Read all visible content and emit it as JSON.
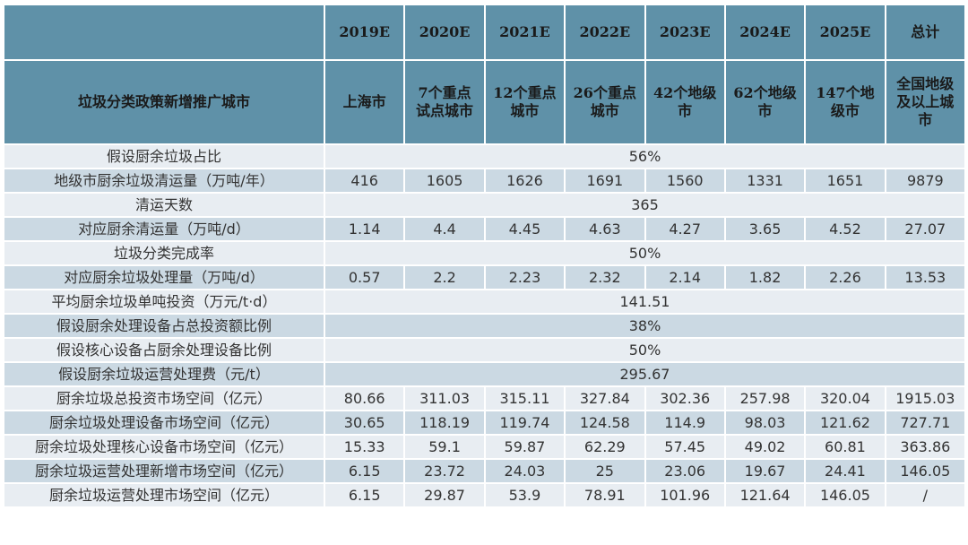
{
  "colors": {
    "header": "#5f91a8",
    "row_light": "#e8edf2",
    "row_dark": "#cbd9e3"
  },
  "header": {
    "years": [
      "2019E",
      "2020E",
      "2021E",
      "2022E",
      "2023E",
      "2024E",
      "2025E",
      "总计"
    ],
    "city_label": "垃圾分类政策新增推广城市",
    "cities": [
      "上海市",
      "7个重点试点城市",
      "12个重点城市",
      "26个重点城市",
      "42个地级市",
      "62个地级市",
      "147个地级市",
      "全国地级及以上城市"
    ]
  },
  "rows": [
    {
      "label": "假设厨余垃圾占比",
      "merged": "56%"
    },
    {
      "label": "地级市厨余垃圾清运量（万吨/年）",
      "values": [
        "416",
        "1605",
        "1626",
        "1691",
        "1560",
        "1331",
        "1651",
        "9879"
      ]
    },
    {
      "label": "清运天数",
      "merged": "365"
    },
    {
      "label": "对应厨余清运量（万吨/d）",
      "values": [
        "1.14",
        "4.4",
        "4.45",
        "4.63",
        "4.27",
        "3.65",
        "4.52",
        "27.07"
      ]
    },
    {
      "label": "垃圾分类完成率",
      "merged": "50%"
    },
    {
      "label": "对应厨余垃圾处理量（万吨/d）",
      "values": [
        "0.57",
        "2.2",
        "2.23",
        "2.32",
        "2.14",
        "1.82",
        "2.26",
        "13.53"
      ]
    },
    {
      "label": "平均厨余垃圾单吨投资（万元/t·d）",
      "merged": "141.51"
    },
    {
      "label": "假设厨余处理设备占总投资额比例",
      "merged": "38%"
    },
    {
      "label": "假设核心设备占厨余处理设备比例",
      "merged": "50%"
    },
    {
      "label": "假设厨余垃圾运营处理费（元/t）",
      "merged": "295.67"
    },
    {
      "label": "厨余垃圾总投资市场空间（亿元）",
      "values": [
        "80.66",
        "311.03",
        "315.11",
        "327.84",
        "302.36",
        "257.98",
        "320.04",
        "1915.03"
      ]
    },
    {
      "label": "厨余垃圾处理设备市场空间（亿元）",
      "values": [
        "30.65",
        "118.19",
        "119.74",
        "124.58",
        "114.9",
        "98.03",
        "121.62",
        "727.71"
      ]
    },
    {
      "label": "厨余垃圾处理核心设备市场空间（亿元）",
      "values": [
        "15.33",
        "59.1",
        "59.87",
        "62.29",
        "57.45",
        "49.02",
        "60.81",
        "363.86"
      ]
    },
    {
      "label": "厨余垃圾运营处理新增市场空间（亿元）",
      "values": [
        "6.15",
        "23.72",
        "24.03",
        "25",
        "23.06",
        "19.67",
        "24.41",
        "146.05"
      ]
    },
    {
      "label": "厨余垃圾运营处理市场空间（亿元）",
      "values": [
        "6.15",
        "29.87",
        "53.9",
        "78.91",
        "101.96",
        "121.64",
        "146.05",
        "/"
      ]
    }
  ]
}
